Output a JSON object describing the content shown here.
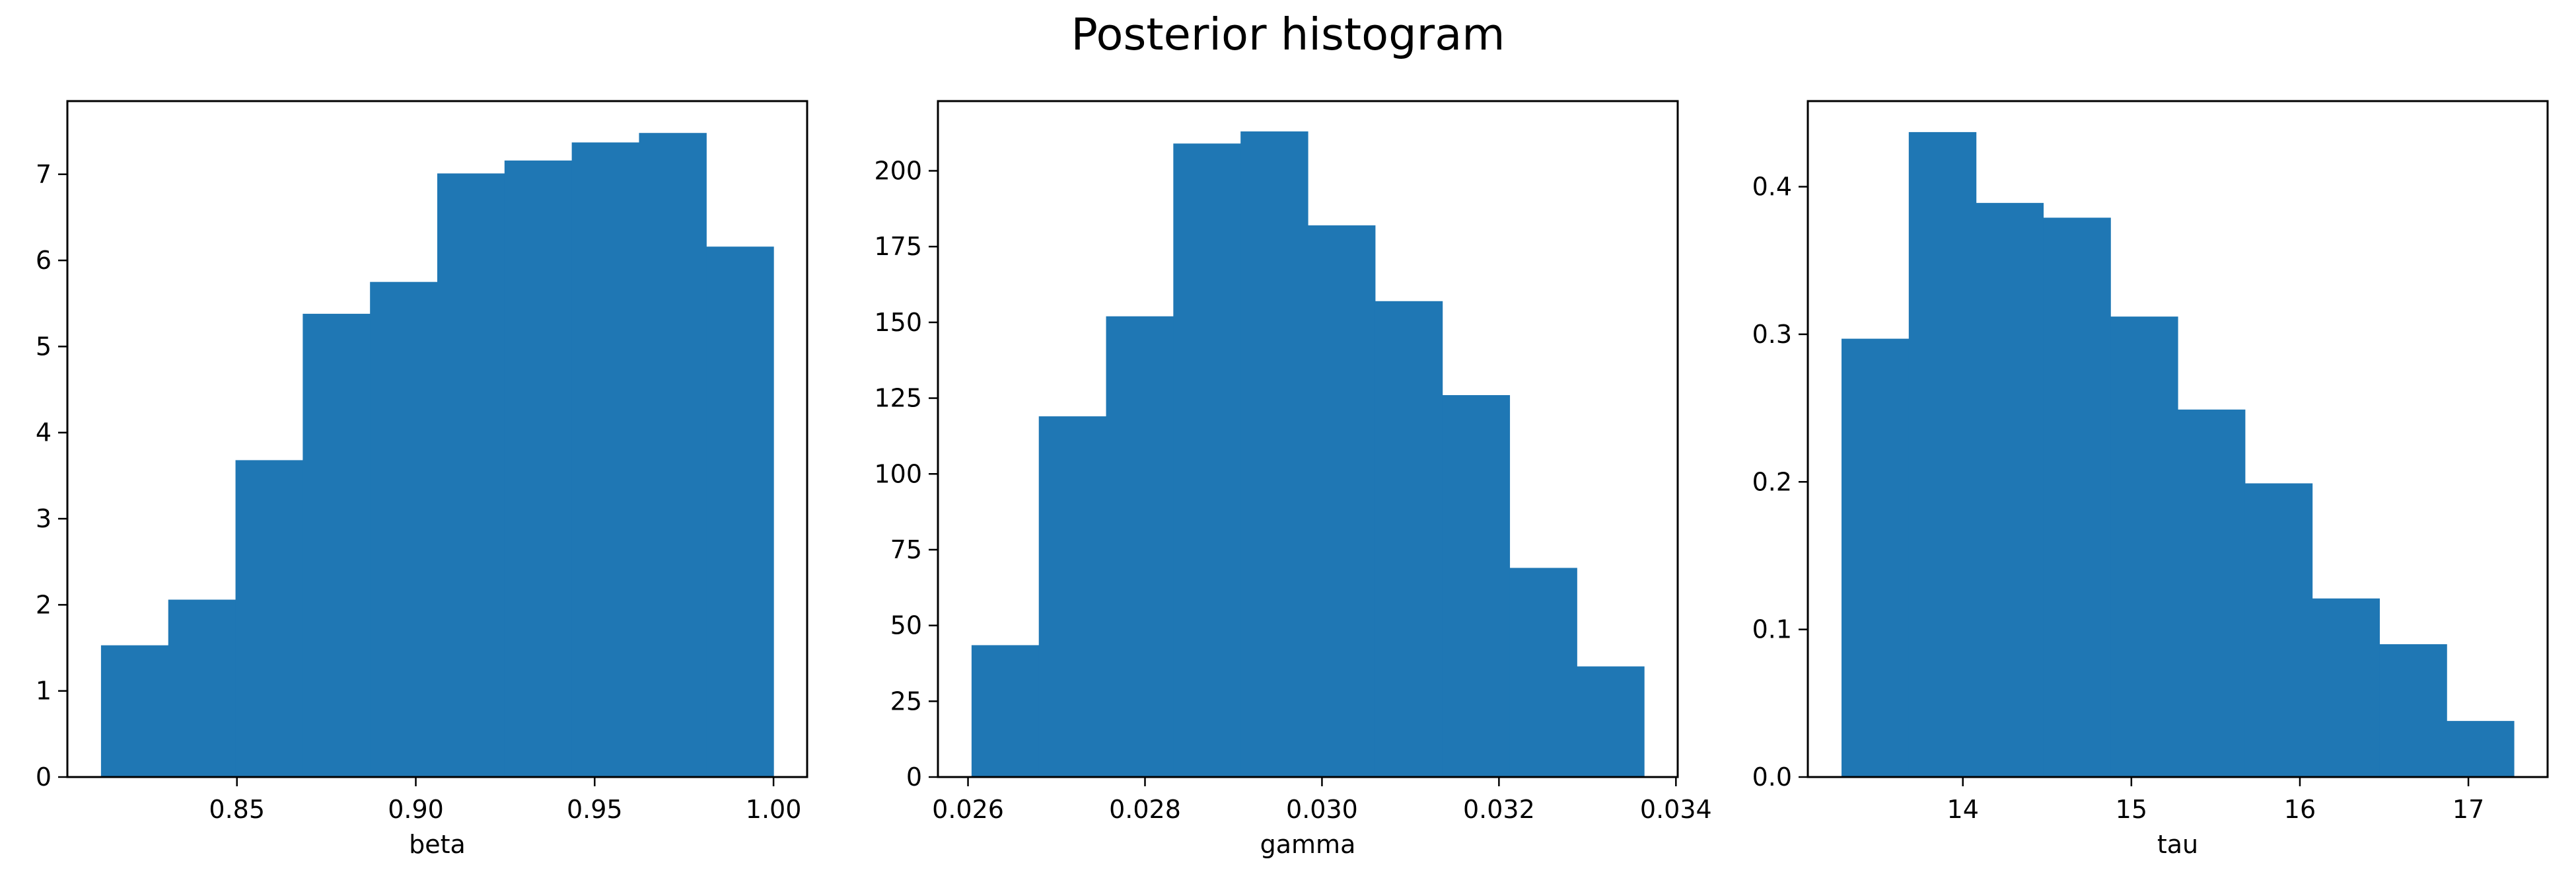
{
  "title": "Posterior histogram",
  "colors": {
    "bar": "#1f77b4",
    "frame": "#000000"
  },
  "chart_data": [
    {
      "type": "bar",
      "xlabel": "beta",
      "ylabel": "",
      "bin_edges": [
        0.812,
        0.8308,
        0.8496,
        0.8684,
        0.8872,
        0.906,
        0.9248,
        0.9436,
        0.9624,
        0.9812,
        1.0
      ],
      "values": [
        1.53,
        2.06,
        3.68,
        5.38,
        5.75,
        7.01,
        7.16,
        7.37,
        7.48,
        6.16
      ],
      "xlim": [
        0.8026,
        1.0094
      ],
      "ylim": [
        0,
        7.85
      ],
      "xticks": [
        0.85,
        0.9,
        0.95,
        1.0
      ],
      "xtick_labels": [
        "0.85",
        "0.90",
        "0.95",
        "1.00"
      ],
      "yticks": [
        0,
        1,
        2,
        3,
        4,
        5,
        6,
        7
      ],
      "ytick_labels": [
        "0",
        "1",
        "2",
        "3",
        "4",
        "5",
        "6",
        "7"
      ]
    },
    {
      "type": "bar",
      "xlabel": "gamma",
      "ylabel": "",
      "bin_edges": [
        0.02604,
        0.0268,
        0.02756,
        0.02832,
        0.02908,
        0.02984,
        0.0306,
        0.03136,
        0.03212,
        0.03288,
        0.03364
      ],
      "values": [
        43.5,
        119,
        152,
        209,
        213,
        182,
        157,
        126,
        69,
        36.5
      ],
      "xlim": [
        0.02566,
        0.03402
      ],
      "ylim": [
        0,
        223
      ],
      "xticks": [
        0.026,
        0.028,
        0.03,
        0.032,
        0.034
      ],
      "xtick_labels": [
        "0.026",
        "0.028",
        "0.030",
        "0.032",
        "0.034"
      ],
      "yticks": [
        0,
        25,
        50,
        75,
        100,
        125,
        150,
        175,
        200
      ],
      "ytick_labels": [
        "0",
        "25",
        "50",
        "75",
        "100",
        "125",
        "150",
        "175",
        "200"
      ]
    },
    {
      "type": "bar",
      "xlabel": "tau",
      "ylabel": "",
      "bin_edges": [
        13.28,
        13.679,
        14.078,
        14.477,
        14.876,
        15.275,
        15.674,
        16.073,
        16.472,
        16.871,
        17.27
      ],
      "values": [
        0.297,
        0.437,
        0.389,
        0.379,
        0.312,
        0.249,
        0.199,
        0.121,
        0.09,
        0.038
      ],
      "xlim": [
        13.08,
        17.47
      ],
      "ylim": [
        0,
        0.458
      ],
      "xticks": [
        14,
        15,
        16,
        17
      ],
      "xtick_labels": [
        "14",
        "15",
        "16",
        "17"
      ],
      "yticks": [
        0.0,
        0.1,
        0.2,
        0.3,
        0.4
      ],
      "ytick_labels": [
        "0.0",
        "0.1",
        "0.2",
        "0.3",
        "0.4"
      ]
    }
  ]
}
